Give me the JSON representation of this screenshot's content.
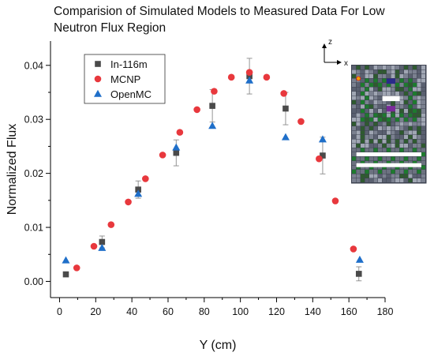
{
  "chart_data": {
    "type": "scatter",
    "title_lines": [
      "Comparision of Simulated Models to Measured Data For Low",
      "Neutron Flux Region"
    ],
    "xlabel": "Y (cm)",
    "ylabel": "Normalized Flux",
    "xlim": [
      -5,
      180
    ],
    "ylim": [
      -0.003,
      0.0445
    ],
    "x_ticks": [
      0,
      20,
      40,
      60,
      80,
      100,
      120,
      140,
      160,
      180
    ],
    "x_tick_labels": [
      "0",
      "20",
      "40",
      "60",
      "80",
      "100",
      "120",
      "140",
      "160",
      "180"
    ],
    "y_ticks": [
      0.0,
      0.01,
      0.02,
      0.03,
      0.04
    ],
    "y_tick_labels": [
      "0.00",
      "0.01",
      "0.02",
      "0.03",
      "0.04"
    ],
    "legend_position": "top-left",
    "grid": false,
    "series": [
      {
        "name": "In-116m",
        "marker": "square",
        "color": "#4a4a4a",
        "points": [
          {
            "x": 3.5,
            "y": 0.0013,
            "err": 0.0
          },
          {
            "x": 23.5,
            "y": 0.0073,
            "err": 0.0011
          },
          {
            "x": 43.5,
            "y": 0.017,
            "err": 0.0016
          },
          {
            "x": 64.5,
            "y": 0.0238,
            "err": 0.0024
          },
          {
            "x": 84.5,
            "y": 0.0325,
            "err": 0.003
          },
          {
            "x": 105.0,
            "y": 0.038,
            "err": 0.0033
          },
          {
            "x": 125.0,
            "y": 0.032,
            "err": 0.003
          },
          {
            "x": 145.5,
            "y": 0.0233,
            "err": 0.0034
          },
          {
            "x": 165.5,
            "y": 0.0014,
            "err": 0.0013
          }
        ]
      },
      {
        "name": "MCNP",
        "marker": "circle",
        "color": "#e8383d",
        "points": [
          {
            "x": 9.5,
            "y": 0.0025
          },
          {
            "x": 19.0,
            "y": 0.0065
          },
          {
            "x": 28.5,
            "y": 0.0105
          },
          {
            "x": 38.0,
            "y": 0.0147
          },
          {
            "x": 47.5,
            "y": 0.019
          },
          {
            "x": 57.0,
            "y": 0.0234
          },
          {
            "x": 66.5,
            "y": 0.0276
          },
          {
            "x": 76.0,
            "y": 0.0318
          },
          {
            "x": 85.5,
            "y": 0.0352
          },
          {
            "x": 95.0,
            "y": 0.0378
          },
          {
            "x": 105.0,
            "y": 0.0387
          },
          {
            "x": 114.5,
            "y": 0.0378
          },
          {
            "x": 124.0,
            "y": 0.0348
          },
          {
            "x": 133.5,
            "y": 0.0296
          },
          {
            "x": 143.5,
            "y": 0.0227
          },
          {
            "x": 152.5,
            "y": 0.0149
          },
          {
            "x": 162.5,
            "y": 0.006
          }
        ]
      },
      {
        "name": "OpenMC",
        "marker": "triangle",
        "color": "#1f6fc9",
        "points": [
          {
            "x": 3.5,
            "y": 0.0039
          },
          {
            "x": 23.5,
            "y": 0.0062
          },
          {
            "x": 43.5,
            "y": 0.0162
          },
          {
            "x": 64.5,
            "y": 0.0248
          },
          {
            "x": 84.5,
            "y": 0.0288
          },
          {
            "x": 105.0,
            "y": 0.0372
          },
          {
            "x": 125.0,
            "y": 0.0267
          },
          {
            "x": 145.5,
            "y": 0.0263
          },
          {
            "x": 166.0,
            "y": 0.004
          }
        ]
      }
    ],
    "inset": {
      "axis_z_label": "z",
      "axis_x_label": "x"
    }
  }
}
